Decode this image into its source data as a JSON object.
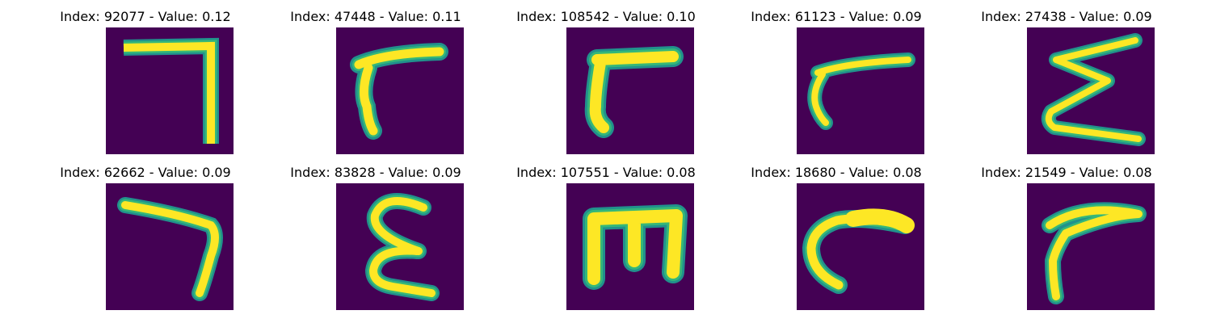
{
  "figure": {
    "colors": {
      "background": "#440154",
      "stroke": "#fde725",
      "edge": "#35b779",
      "halo": "#21918c"
    },
    "panels": [
      {
        "title": "Index: 92077 - Value: 0.12",
        "glyph": "seven-angle-icon"
      },
      {
        "title": "Index: 47448 - Value: 0.11",
        "glyph": "gamma-curve-icon"
      },
      {
        "title": "Index: 108542 - Value: 0.10",
        "glyph": "gamma-bold-icon"
      },
      {
        "title": "Index: 61123 - Value: 0.09",
        "glyph": "gamma-thin-icon"
      },
      {
        "title": "Index: 27438 - Value: 0.09",
        "glyph": "sigma-zigzag-icon"
      },
      {
        "title": "Index: 62662 - Value: 0.09",
        "glyph": "seven-curved-icon"
      },
      {
        "title": "Index: 83828 - Value: 0.09",
        "glyph": "epsilon-icon"
      },
      {
        "title": "Index: 107551 - Value: 0.08",
        "glyph": "m-shape-icon"
      },
      {
        "title": "Index: 18680 - Value: 0.08",
        "glyph": "c-hook-icon"
      },
      {
        "title": "Index: 21549 - Value: 0.08",
        "glyph": "gamma-swoop-icon"
      }
    ]
  }
}
